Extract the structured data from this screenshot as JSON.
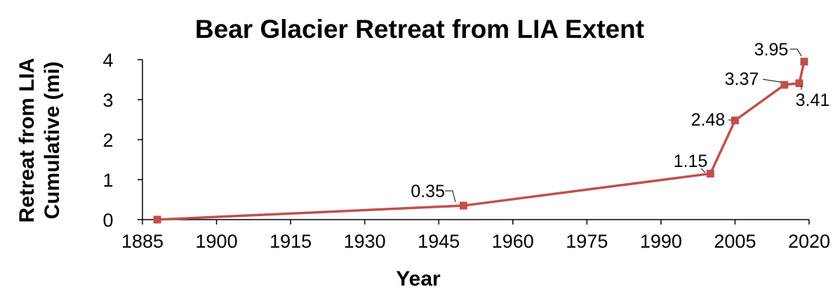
{
  "chart_data": {
    "type": "line",
    "title": "Bear Glacier Retreat from LIA Extent",
    "xlabel": "Year",
    "ylabel_lines": [
      "Retreat from LIA",
      "Cumulative (mi)"
    ],
    "xlim": [
      1885,
      2020
    ],
    "ylim": [
      0,
      4
    ],
    "xticks": [
      1885,
      1900,
      1915,
      1930,
      1945,
      1960,
      1975,
      1990,
      2005,
      2020
    ],
    "yticks": [
      0,
      1,
      2,
      3,
      4
    ],
    "grid": false,
    "legend": "none",
    "series": [
      {
        "color": "#C0504D",
        "points": [
          {
            "x": 1888,
            "y": 0,
            "label": ""
          },
          {
            "x": 1950,
            "y": 0.35,
            "label": "0.35"
          },
          {
            "x": 2000,
            "y": 1.15,
            "label": "1.15"
          },
          {
            "x": 2005,
            "y": 2.48,
            "label": "2.48"
          },
          {
            "x": 2015,
            "y": 3.37,
            "label": "3.37"
          },
          {
            "x": 2018,
            "y": 3.41,
            "label": "3.41"
          },
          {
            "x": 2019,
            "y": 3.95,
            "label": "3.95"
          }
        ]
      }
    ]
  }
}
